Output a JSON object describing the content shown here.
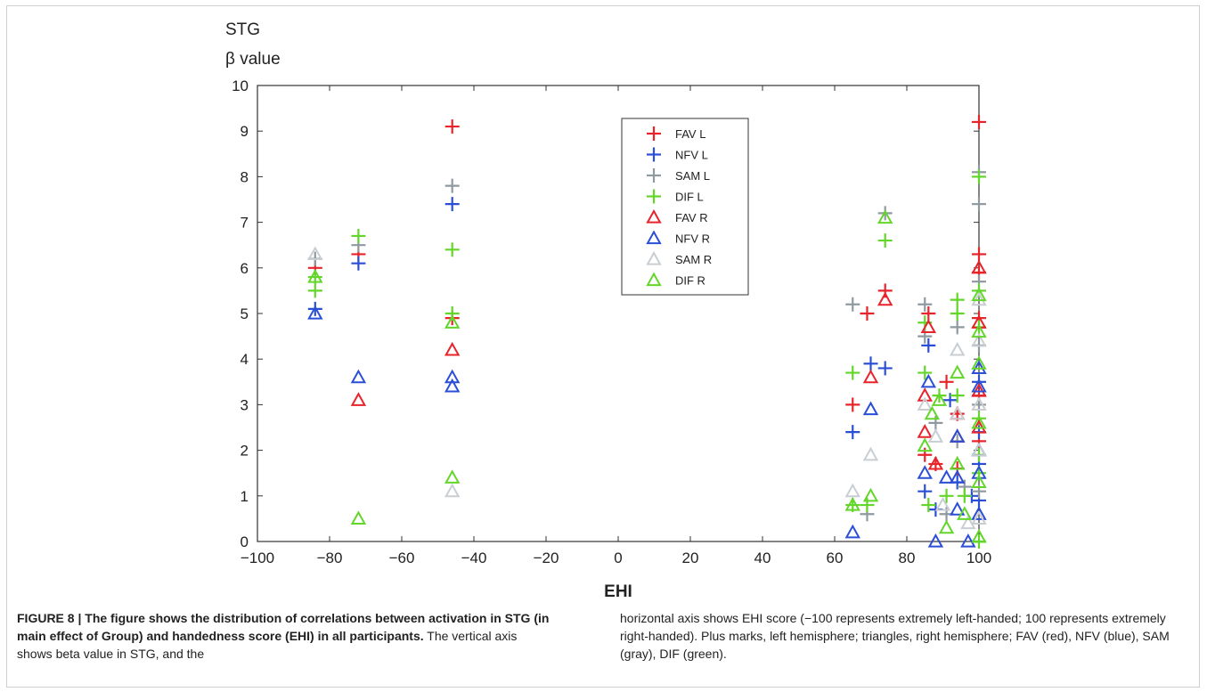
{
  "chart_data": {
    "type": "scatter",
    "ylabel_line1": "STG",
    "ylabel_line2": "β value",
    "xlabel": "EHI",
    "xlim": [
      -100,
      100
    ],
    "ylim": [
      0,
      10
    ],
    "xticks": [
      -100,
      -80,
      -60,
      -40,
      -20,
      0,
      20,
      40,
      60,
      80,
      100
    ],
    "yticks": [
      0,
      1,
      2,
      3,
      4,
      5,
      6,
      7,
      8,
      9,
      10
    ],
    "xtick_labels": [
      "−100",
      "−80",
      "−60",
      "−40",
      "−20",
      "0",
      "20",
      "40",
      "60",
      "80",
      "100"
    ],
    "grid": false,
    "legend_position": "top-center",
    "series": [
      {
        "name": "FAV L",
        "marker": "plus",
        "color": "#e8232a",
        "points": [
          [
            -84,
            6.0
          ],
          [
            -72,
            6.3
          ],
          [
            -46,
            9.1
          ],
          [
            -46,
            4.9
          ],
          [
            65,
            3.0
          ],
          [
            69,
            5.0
          ],
          [
            74,
            5.5
          ],
          [
            85,
            1.9
          ],
          [
            86,
            5.0
          ],
          [
            88,
            1.7
          ],
          [
            91,
            3.5
          ],
          [
            94,
            2.8
          ],
          [
            94,
            1.6
          ],
          [
            100,
            9.2
          ],
          [
            100,
            6.3
          ],
          [
            100,
            5.9
          ],
          [
            100,
            4.9
          ],
          [
            100,
            3.2
          ],
          [
            100,
            2.2
          ]
        ]
      },
      {
        "name": "NFV L",
        "marker": "plus",
        "color": "#2a4fd6",
        "points": [
          [
            -84,
            5.1
          ],
          [
            -72,
            6.1
          ],
          [
            -46,
            7.4
          ],
          [
            65,
            2.4
          ],
          [
            70,
            3.9
          ],
          [
            74,
            3.8
          ],
          [
            85,
            1.1
          ],
          [
            86,
            4.3
          ],
          [
            88,
            0.7
          ],
          [
            92,
            3.1
          ],
          [
            94,
            1.3
          ],
          [
            98,
            1.0
          ],
          [
            100,
            3.5
          ],
          [
            100,
            2.4
          ],
          [
            100,
            1.7
          ],
          [
            100,
            0.9
          ]
        ]
      },
      {
        "name": "SAM L",
        "marker": "plus",
        "color": "#8e9aa0",
        "points": [
          [
            -84,
            6.2
          ],
          [
            -72,
            6.5
          ],
          [
            -46,
            7.8
          ],
          [
            65,
            5.2
          ],
          [
            69,
            0.6
          ],
          [
            74,
            7.2
          ],
          [
            85,
            5.2
          ],
          [
            85,
            4.5
          ],
          [
            88,
            2.6
          ],
          [
            91,
            0.6
          ],
          [
            94,
            4.7
          ],
          [
            94,
            2.2
          ],
          [
            96,
            1.2
          ],
          [
            100,
            8.1
          ],
          [
            100,
            7.4
          ],
          [
            100,
            5.7
          ],
          [
            100,
            4.3
          ],
          [
            100,
            3.0
          ],
          [
            100,
            1.1
          ]
        ]
      },
      {
        "name": "DIF L",
        "marker": "plus",
        "color": "#63d62a",
        "points": [
          [
            -84,
            5.5
          ],
          [
            -84,
            5.8
          ],
          [
            -72,
            6.7
          ],
          [
            -46,
            6.4
          ],
          [
            -46,
            5.0
          ],
          [
            65,
            3.7
          ],
          [
            65,
            0.8
          ],
          [
            69,
            0.8
          ],
          [
            74,
            6.6
          ],
          [
            85,
            3.7
          ],
          [
            85,
            4.8
          ],
          [
            86,
            0.8
          ],
          [
            89,
            3.2
          ],
          [
            91,
            1.0
          ],
          [
            94,
            5.0
          ],
          [
            94,
            5.3
          ],
          [
            94,
            3.2
          ],
          [
            96,
            1.0
          ],
          [
            100,
            8.0
          ],
          [
            100,
            5.5
          ],
          [
            100,
            4.7
          ],
          [
            100,
            2.7
          ],
          [
            100,
            1.9
          ],
          [
            100,
            1.5
          ],
          [
            100,
            0.0
          ]
        ]
      },
      {
        "name": "FAV R",
        "marker": "triangle",
        "color": "#e8232a",
        "points": [
          [
            -72,
            3.1
          ],
          [
            -46,
            4.2
          ],
          [
            70,
            3.6
          ],
          [
            74,
            5.3
          ],
          [
            85,
            3.2
          ],
          [
            85,
            2.4
          ],
          [
            86,
            4.7
          ],
          [
            88,
            1.7
          ],
          [
            94,
            2.8
          ],
          [
            94,
            2.3
          ],
          [
            100,
            6.0
          ],
          [
            100,
            4.8
          ],
          [
            100,
            3.3
          ],
          [
            100,
            2.5
          ]
        ]
      },
      {
        "name": "NFV R",
        "marker": "triangle",
        "color": "#2a4fd6",
        "points": [
          [
            -84,
            5.0
          ],
          [
            -72,
            3.6
          ],
          [
            -46,
            3.6
          ],
          [
            -46,
            3.4
          ],
          [
            65,
            0.2
          ],
          [
            70,
            2.9
          ],
          [
            85,
            1.5
          ],
          [
            86,
            3.5
          ],
          [
            88,
            0.0
          ],
          [
            91,
            1.4
          ],
          [
            94,
            2.3
          ],
          [
            94,
            1.4
          ],
          [
            94,
            0.7
          ],
          [
            97,
            0.0
          ],
          [
            100,
            3.8
          ],
          [
            100,
            3.4
          ],
          [
            100,
            2.0
          ],
          [
            100,
            1.5
          ],
          [
            100,
            0.6
          ]
        ]
      },
      {
        "name": "SAM R",
        "marker": "triangle",
        "color": "#c9ced2",
        "points": [
          [
            -84,
            6.3
          ],
          [
            -46,
            1.1
          ],
          [
            65,
            1.1
          ],
          [
            70,
            1.9
          ],
          [
            85,
            3.0
          ],
          [
            88,
            2.3
          ],
          [
            90,
            0.8
          ],
          [
            94,
            4.2
          ],
          [
            94,
            2.8
          ],
          [
            97,
            0.4
          ],
          [
            100,
            5.3
          ],
          [
            100,
            4.4
          ],
          [
            100,
            3.0
          ],
          [
            100,
            2.0
          ],
          [
            100,
            0.5
          ]
        ]
      },
      {
        "name": "DIF R",
        "marker": "triangle",
        "color": "#63d62a",
        "points": [
          [
            -84,
            5.8
          ],
          [
            -72,
            0.5
          ],
          [
            -46,
            1.4
          ],
          [
            -46,
            4.8
          ],
          [
            65,
            0.8
          ],
          [
            70,
            1.0
          ],
          [
            74,
            7.1
          ],
          [
            85,
            2.1
          ],
          [
            87,
            2.8
          ],
          [
            89,
            3.1
          ],
          [
            91,
            0.3
          ],
          [
            94,
            3.7
          ],
          [
            94,
            1.7
          ],
          [
            96,
            0.6
          ],
          [
            100,
            5.4
          ],
          [
            100,
            4.6
          ],
          [
            100,
            3.9
          ],
          [
            100,
            2.6
          ],
          [
            100,
            1.3
          ],
          [
            100,
            0.1
          ]
        ]
      }
    ]
  },
  "caption": {
    "bold": "FIGURE 8 | The figure shows the distribution of correlations between activation in STG (in main effect of Group) and handedness score (EHI) in all participants.",
    "left_rest": " The vertical axis shows beta value in STG, and the",
    "right": "horizontal axis shows EHI score (−100 represents extremely left-handed; 100 represents extremely right-handed). Plus marks, left hemisphere; triangles, right hemisphere; FAV (red), NFV (blue), SAM (gray), DIF (green)."
  }
}
